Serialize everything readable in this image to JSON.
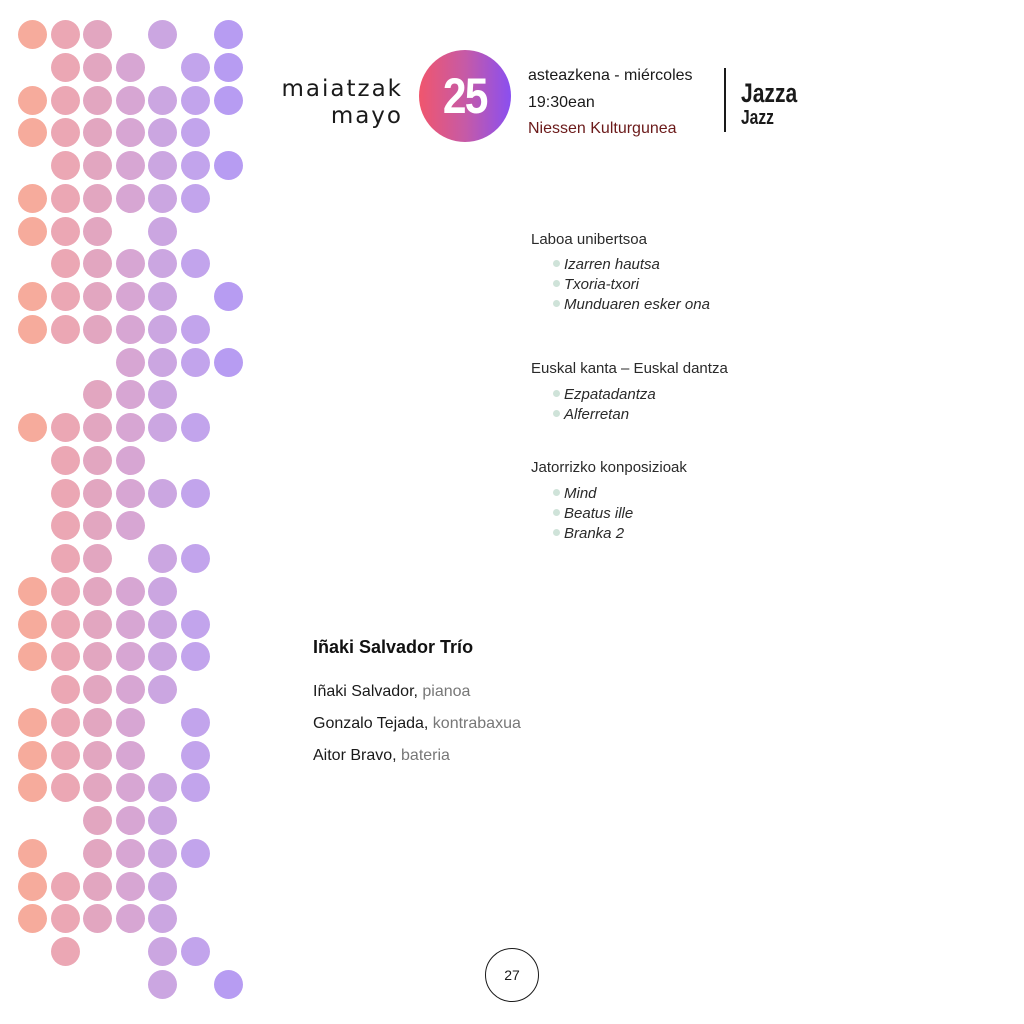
{
  "header": {
    "month_eu": "maiatzak",
    "month_es": "mayo",
    "day": "25",
    "weekday": "asteazkena - miércoles",
    "time": "19:30ean",
    "venue": "Niessen Kulturgunea",
    "genre_eu": "Jazza",
    "genre_es": "Jazz"
  },
  "program": [
    {
      "title": "Laboa unibertsoa",
      "items": [
        "Izarren hautsa",
        "Txoria-txori",
        "Munduaren esker ona"
      ]
    },
    {
      "title": "Euskal kanta – Euskal dantza",
      "items": [
        "Ezpatadantza",
        "Alferretan"
      ]
    },
    {
      "title": "Jatorrizko konposizioak",
      "items": [
        "Mind",
        "Beatus ille",
        "Branka 2"
      ]
    }
  ],
  "band": {
    "name": "Iñaki Salvador Trío",
    "members": [
      {
        "name": "Iñaki Salvador",
        "instrument": "pianoa"
      },
      {
        "name": "Gonzalo Tejada",
        "instrument": "kontrabaxua"
      },
      {
        "name": "Aitor Bravo",
        "instrument": "bateria"
      }
    ]
  },
  "page_number": "27",
  "dot_colors": [
    "#f6ab9c",
    "#eba7b4",
    "#e2a6c0",
    "#d7a6d3",
    "#cba6e1",
    "#c2a4ec",
    "#b79cf2"
  ],
  "dot_pattern": [
    "1110101",
    "0111011",
    "1111111",
    "1111110",
    "0111111",
    "1111110",
    "1110100",
    "0111110",
    "1111101",
    "1111110",
    "0001111",
    "0011100",
    "1111110",
    "0111000",
    "0111110",
    "0111000",
    "0110110",
    "1111100",
    "1111110",
    "1111110",
    "0111100",
    "1111010",
    "1111010",
    "1111110",
    "0011100",
    "1011110",
    "1111100",
    "1111100",
    "0100110",
    "0000101"
  ]
}
